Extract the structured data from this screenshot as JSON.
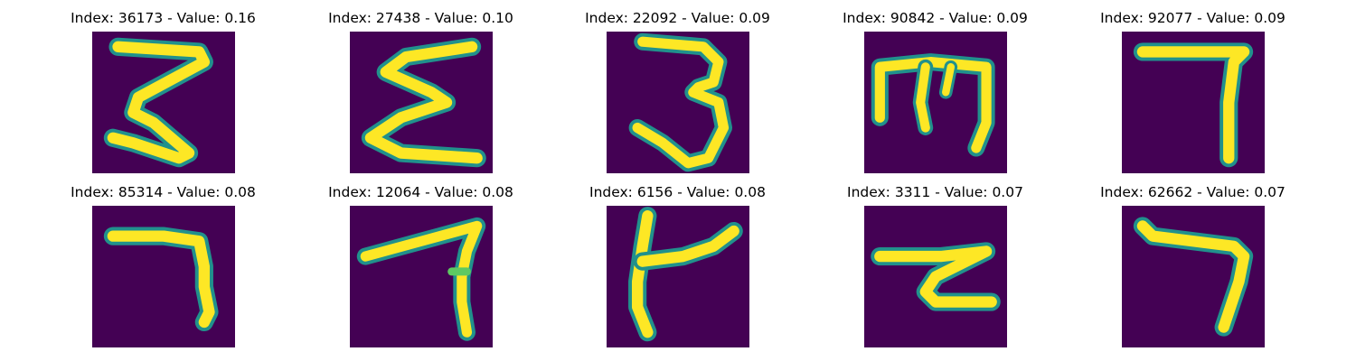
{
  "colors": {
    "background": "#440154",
    "stroke_outer": "#21918c",
    "stroke_inner": "#fde725",
    "stroke_mid": "#5ec962"
  },
  "panels": [
    {
      "title": "Index: 36173 - Value: 0.16",
      "glyph": "z-shape"
    },
    {
      "title": "Index: 27438 - Value: 0.10",
      "glyph": "sigma-shape"
    },
    {
      "title": "Index: 22092 - Value: 0.09",
      "glyph": "three-shape"
    },
    {
      "title": "Index: 90842 - Value: 0.09",
      "glyph": "m-shape"
    },
    {
      "title": "Index: 92077 - Value: 0.09",
      "glyph": "seven-shape"
    },
    {
      "title": "Index: 85314 - Value: 0.08",
      "glyph": "seven-bent-shape"
    },
    {
      "title": "Index: 12064 - Value: 0.08",
      "glyph": "four-shape"
    },
    {
      "title": "Index: 6156 - Value: 0.08",
      "glyph": "k-shape"
    },
    {
      "title": "Index: 3311 - Value: 0.07",
      "glyph": "z-hook-shape"
    },
    {
      "title": "Index: 62662 - Value: 0.07",
      "glyph": "seven-slant-shape"
    }
  ]
}
